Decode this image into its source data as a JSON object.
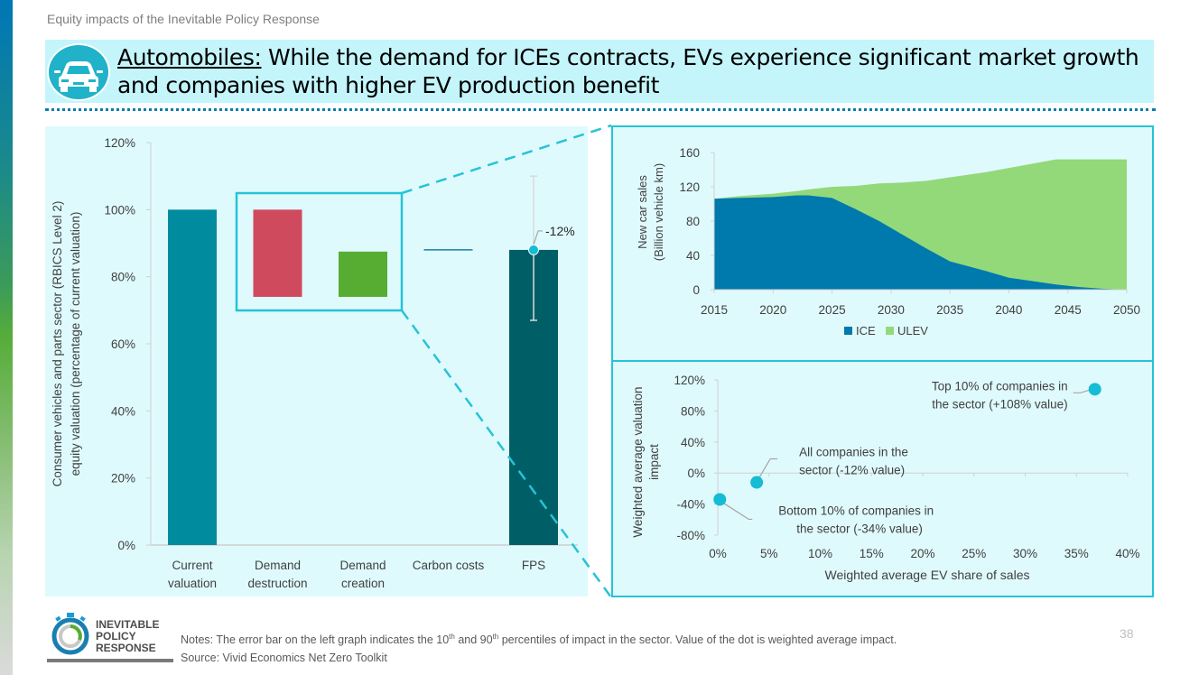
{
  "page": {
    "subtitle": "Equity impacts of the Inevitable Policy Response",
    "title_prefix": "Automobiles:",
    "title_rest": " While the demand for ICEs contracts, EVs experience significant market growth and companies with higher EV production benefit",
    "title_icon": "car-icon",
    "page_number": "38"
  },
  "footer": {
    "logo_lines": [
      "INEVITABLE",
      "POLICY",
      "RESPONSE"
    ],
    "notes_a": "Notes: The error bar on the left graph indicates the 10",
    "notes_sup1": "th",
    "notes_b": " and 90",
    "notes_sup2": "th",
    "notes_c": " percentiles of impact in the sector. Value of the dot is weighted average impact.",
    "source": "Source: Vivid Economics Net Zero Toolkit"
  },
  "colors": {
    "current": "#008c9e",
    "destruction": "#d04a5e",
    "creation": "#56ad32",
    "carbon": "#1a7fa6",
    "fps": "#005f66",
    "dot": "#14bcd4",
    "ice": "#0079ad",
    "ulev": "#93d97a",
    "highlight": "#27c3d6"
  },
  "chart_data": [
    {
      "type": "bar",
      "subtype": "waterfall",
      "ylabel_lines": [
        "Consumer vehicles and parts sector (RBICS Level 2)",
        "equity valuation (percentage of current valuation)"
      ],
      "categories": [
        [
          "Current",
          "valuation"
        ],
        [
          "Demand",
          "destruction"
        ],
        [
          "Demand",
          "creation"
        ],
        [
          "Carbon costs"
        ],
        [
          "FPS"
        ]
      ],
      "bars": [
        {
          "name": "Current valuation",
          "base": 0,
          "top": 100
        },
        {
          "name": "Demand destruction",
          "base": 74,
          "top": 100
        },
        {
          "name": "Demand creation",
          "base": 74,
          "top": 87.5
        },
        {
          "name": "Carbon costs",
          "base": 87.5,
          "top": 88
        },
        {
          "name": "FPS",
          "base": 0,
          "top": 88
        }
      ],
      "error_bar": {
        "category": "FPS",
        "low": 67,
        "high": 110,
        "dot": 88,
        "label": "-12%"
      },
      "yticks": [
        "0%",
        "20%",
        "40%",
        "60%",
        "80%",
        "100%",
        "120%"
      ],
      "ylim": [
        0,
        120
      ],
      "highlight_box": {
        "categories": [
          "Demand destruction",
          "Demand creation"
        ],
        "ylim": [
          70,
          104
        ]
      }
    },
    {
      "type": "area",
      "stacked": true,
      "ylabel_lines": [
        "New car sales",
        "(Billion vehicle km)"
      ],
      "x": [
        2015,
        2017,
        2020,
        2022,
        2023,
        2025,
        2027,
        2029,
        2031,
        2033,
        2035,
        2038,
        2040,
        2042,
        2044,
        2046,
        2048,
        2050
      ],
      "series": [
        {
          "name": "ICE",
          "values": [
            106,
            107,
            108,
            110,
            110,
            107,
            94,
            80,
            64,
            48,
            33,
            22,
            14,
            10,
            6,
            3,
            1,
            0
          ]
        },
        {
          "name": "ULEV",
          "values": [
            0,
            2,
            4,
            5,
            7,
            13,
            27,
            44,
            61,
            79,
            98,
            115,
            128,
            137,
            146,
            149,
            151,
            152
          ]
        }
      ],
      "xticks": [
        "2015",
        "2020",
        "2025",
        "2030",
        "2035",
        "2040",
        "2045",
        "2050"
      ],
      "yticks": [
        "0",
        "40",
        "80",
        "120",
        "160"
      ],
      "xlim": [
        2015,
        2050
      ],
      "ylim": [
        0,
        160
      ],
      "legend": "bottom"
    },
    {
      "type": "scatter",
      "xlabel": "Weighted average EV share of sales",
      "ylabel_lines": [
        "Weighted average valuation",
        "impact"
      ],
      "points": [
        {
          "x": 0.2,
          "y": -34,
          "label_lines": [
            "Bottom 10% of companies in",
            "the sector (-34% value)"
          ]
        },
        {
          "x": 3.8,
          "y": -12,
          "label_lines": [
            "All companies in the",
            "sector (-12% value)"
          ]
        },
        {
          "x": 36.8,
          "y": 108,
          "label_lines": [
            "Top 10% of companies in",
            "the sector (+108% value)"
          ]
        }
      ],
      "xticks": [
        "0%",
        "5%",
        "10%",
        "15%",
        "20%",
        "25%",
        "30%",
        "35%",
        "40%"
      ],
      "yticks": [
        "-80%",
        "-40%",
        "0%",
        "40%",
        "80%",
        "120%"
      ],
      "xlim": [
        0,
        40
      ],
      "ylim": [
        -80,
        120
      ]
    }
  ]
}
